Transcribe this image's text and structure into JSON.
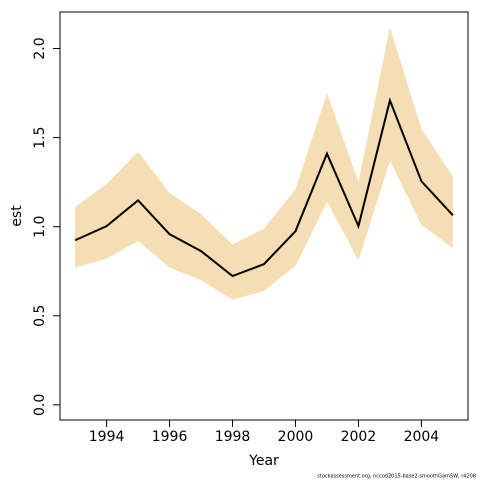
{
  "chart_data": {
    "type": "line",
    "x": [
      1993,
      1994,
      1995,
      1996,
      1997,
      1998,
      1999,
      2000,
      2001,
      2002,
      2003,
      2004,
      2005
    ],
    "values": [
      0.924,
      1.003,
      1.148,
      0.958,
      0.863,
      0.723,
      0.79,
      0.975,
      1.41,
      1.003,
      1.709,
      1.255,
      1.064
    ],
    "upper": [
      1.11,
      1.24,
      1.42,
      1.19,
      1.07,
      0.9,
      0.99,
      1.21,
      1.75,
      1.25,
      2.12,
      1.55,
      1.28
    ],
    "lower": [
      0.77,
      0.82,
      0.92,
      0.77,
      0.7,
      0.59,
      0.64,
      0.78,
      1.14,
      0.81,
      1.37,
      1.01,
      0.88
    ],
    "color": "#000000",
    "band_color": "#f5deb3",
    "xlabel": "Year",
    "ylabel": "est",
    "footnote": "stockassessment.org, nccod2015-base2-smoothGamSW, r4208",
    "xlim": [
      1992.52,
      2005.48
    ],
    "xticks": [
      1994,
      1996,
      1998,
      2000,
      2002,
      2004
    ],
    "ylim": [
      -0.085,
      2.205
    ],
    "yticks": [
      {
        "value": 0,
        "label": "0.0"
      },
      0.5,
      {
        "value": 1,
        "label": "1.0"
      },
      1.5,
      {
        "value": 2,
        "label": "2.0"
      }
    ]
  }
}
